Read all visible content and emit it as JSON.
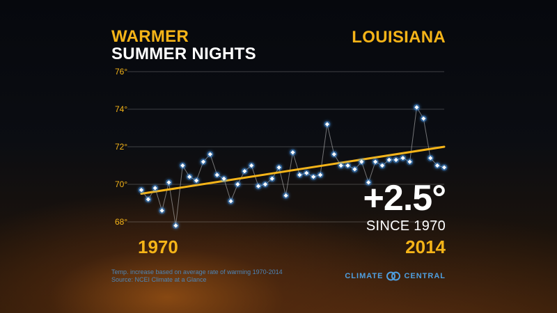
{
  "title": {
    "line1": "WARMER",
    "line2": "SUMMER NIGHTS"
  },
  "location": "LOUISIANA",
  "callout": {
    "change": "+2.5°",
    "since": "SINCE 1970"
  },
  "years": {
    "start": "1970",
    "end": "2014"
  },
  "notes": {
    "line1": "Temp. increase based on average rate of warming 1970-2014",
    "line2": "Source: NCEI Climate at a Glance"
  },
  "logo": {
    "left": "CLIMATE",
    "right": "CENTRAL"
  },
  "colors": {
    "accent": "#f5b418",
    "point": "#4aa3ff",
    "trend": "#f5b418"
  },
  "chart_data": {
    "type": "line",
    "x": [
      1970,
      1971,
      1972,
      1973,
      1974,
      1975,
      1976,
      1977,
      1978,
      1979,
      1980,
      1981,
      1982,
      1983,
      1984,
      1985,
      1986,
      1987,
      1988,
      1989,
      1990,
      1991,
      1992,
      1993,
      1994,
      1995,
      1996,
      1997,
      1998,
      1999,
      2000,
      2001,
      2002,
      2003,
      2004,
      2005,
      2006,
      2007,
      2008,
      2009,
      2010,
      2011,
      2012,
      2013,
      2014
    ],
    "series": [
      {
        "values": [
          69.7,
          69.2,
          69.8,
          68.6,
          70.1,
          67.8,
          71.0,
          70.4,
          70.2,
          71.2,
          71.6,
          70.5,
          70.3,
          69.1,
          70.0,
          70.7,
          71.0,
          69.9,
          70.0,
          70.3,
          70.9,
          69.4,
          71.7,
          70.5,
          70.6,
          70.4,
          70.5,
          73.2,
          71.6,
          71.0,
          71.0,
          70.8,
          71.2,
          70.1,
          71.2,
          71.0,
          71.3,
          71.3,
          71.4,
          71.2,
          74.1,
          73.5,
          71.4,
          71.0,
          70.9
        ]
      }
    ],
    "trend": {
      "start": 69.5,
      "end": 72.0
    },
    "yticks": [
      "76°",
      "74°",
      "72°",
      "70°",
      "68°"
    ],
    "ytick_values": [
      76,
      74,
      72,
      70,
      68
    ],
    "ylim": [
      67.5,
      76.5
    ],
    "grid": true
  }
}
